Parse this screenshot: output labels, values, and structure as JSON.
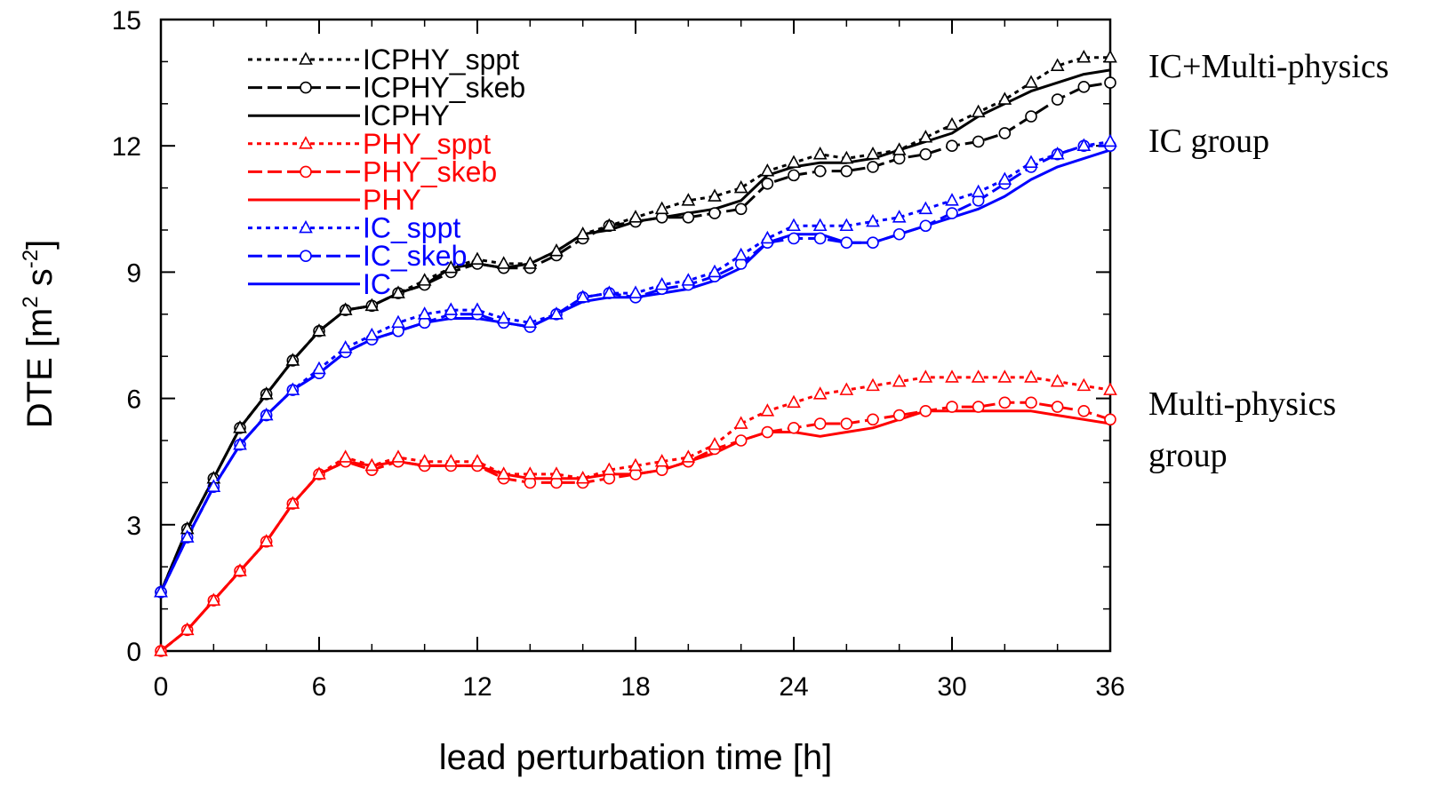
{
  "chart_data": {
    "type": "line",
    "title": "",
    "xlabel": "lead perturbation time [h]",
    "ylabel": {
      "base": "DTE [m",
      "sup1": "2",
      "mid": " s",
      "sup2": "-2",
      "end": "]"
    },
    "xlim": [
      0,
      36
    ],
    "ylim": [
      0,
      15
    ],
    "xticks": [
      0,
      6,
      12,
      18,
      24,
      30,
      36
    ],
    "yticks": [
      0,
      3,
      6,
      9,
      12,
      15
    ],
    "legend_position": "top-left",
    "grid": false,
    "x": [
      0,
      1,
      2,
      3,
      4,
      5,
      6,
      7,
      8,
      9,
      10,
      11,
      12,
      13,
      14,
      15,
      16,
      17,
      18,
      19,
      20,
      21,
      22,
      23,
      24,
      25,
      26,
      27,
      28,
      29,
      30,
      31,
      32,
      33,
      34,
      35,
      36
    ],
    "series": [
      {
        "name": "ICPHY_sppt",
        "color": "#000000",
        "dash": "dotted",
        "marker": "triangle",
        "values": [
          1.4,
          2.9,
          4.1,
          5.3,
          6.1,
          6.9,
          7.6,
          8.1,
          8.2,
          8.5,
          8.8,
          9.1,
          9.3,
          9.2,
          9.2,
          9.5,
          9.9,
          10.1,
          10.3,
          10.5,
          10.7,
          10.8,
          11.0,
          11.4,
          11.6,
          11.8,
          11.7,
          11.8,
          11.9,
          12.2,
          12.5,
          12.8,
          13.1,
          13.5,
          13.9,
          14.1,
          14.1
        ]
      },
      {
        "name": "ICPHY_skeb",
        "color": "#000000",
        "dash": "dashed",
        "marker": "circle",
        "values": [
          1.4,
          2.9,
          4.1,
          5.3,
          6.1,
          6.9,
          7.6,
          8.1,
          8.2,
          8.5,
          8.7,
          9.0,
          9.2,
          9.1,
          9.1,
          9.4,
          9.8,
          10.1,
          10.2,
          10.3,
          10.3,
          10.4,
          10.5,
          11.1,
          11.3,
          11.4,
          11.4,
          11.5,
          11.7,
          11.8,
          12.0,
          12.1,
          12.3,
          12.7,
          13.1,
          13.4,
          13.5
        ]
      },
      {
        "name": "ICPHY",
        "color": "#000000",
        "dash": "solid",
        "marker": "none",
        "values": [
          1.4,
          2.9,
          4.1,
          5.3,
          6.1,
          6.9,
          7.6,
          8.1,
          8.2,
          8.5,
          8.7,
          9.1,
          9.2,
          9.1,
          9.2,
          9.5,
          9.9,
          10.0,
          10.2,
          10.3,
          10.4,
          10.5,
          10.7,
          11.3,
          11.5,
          11.6,
          11.6,
          11.7,
          11.9,
          12.1,
          12.3,
          12.7,
          13.0,
          13.3,
          13.5,
          13.7,
          13.8
        ]
      },
      {
        "name": "PHY_sppt",
        "color": "#ff0000",
        "dash": "dotted",
        "marker": "triangle",
        "values": [
          0.0,
          0.5,
          1.2,
          1.9,
          2.6,
          3.5,
          4.2,
          4.6,
          4.4,
          4.6,
          4.5,
          4.5,
          4.5,
          4.2,
          4.2,
          4.2,
          4.1,
          4.3,
          4.4,
          4.5,
          4.6,
          4.9,
          5.4,
          5.7,
          5.9,
          6.1,
          6.2,
          6.3,
          6.4,
          6.5,
          6.5,
          6.5,
          6.5,
          6.5,
          6.4,
          6.3,
          6.2
        ]
      },
      {
        "name": "PHY_skeb",
        "color": "#ff0000",
        "dash": "dashed",
        "marker": "circle",
        "values": [
          0.0,
          0.5,
          1.2,
          1.9,
          2.6,
          3.5,
          4.2,
          4.5,
          4.3,
          4.5,
          4.4,
          4.4,
          4.4,
          4.1,
          4.0,
          4.0,
          4.0,
          4.1,
          4.2,
          4.3,
          4.5,
          4.8,
          5.0,
          5.2,
          5.3,
          5.4,
          5.4,
          5.5,
          5.6,
          5.7,
          5.8,
          5.8,
          5.9,
          5.9,
          5.8,
          5.7,
          5.5
        ]
      },
      {
        "name": "PHY",
        "color": "#ff0000",
        "dash": "solid",
        "marker": "none",
        "values": [
          0.0,
          0.5,
          1.2,
          1.9,
          2.6,
          3.5,
          4.2,
          4.5,
          4.4,
          4.5,
          4.4,
          4.4,
          4.4,
          4.2,
          4.1,
          4.1,
          4.1,
          4.2,
          4.2,
          4.3,
          4.5,
          4.7,
          5.0,
          5.2,
          5.2,
          5.1,
          5.2,
          5.3,
          5.5,
          5.7,
          5.7,
          5.7,
          5.7,
          5.7,
          5.6,
          5.5,
          5.4
        ]
      },
      {
        "name": "IC_sppt",
        "color": "#0000ff",
        "dash": "dotted",
        "marker": "triangle",
        "values": [
          1.4,
          2.7,
          3.9,
          4.9,
          5.6,
          6.2,
          6.7,
          7.2,
          7.5,
          7.8,
          8.0,
          8.1,
          8.1,
          7.9,
          7.8,
          8.0,
          8.4,
          8.5,
          8.5,
          8.7,
          8.8,
          9.0,
          9.4,
          9.8,
          10.1,
          10.1,
          10.1,
          10.2,
          10.3,
          10.5,
          10.7,
          10.9,
          11.2,
          11.6,
          11.8,
          12.0,
          12.1
        ]
      },
      {
        "name": "IC_skeb",
        "color": "#0000ff",
        "dash": "dashed",
        "marker": "circle",
        "values": [
          1.4,
          2.7,
          3.9,
          4.9,
          5.6,
          6.2,
          6.6,
          7.1,
          7.4,
          7.6,
          7.8,
          8.0,
          8.0,
          7.8,
          7.7,
          8.0,
          8.4,
          8.5,
          8.4,
          8.6,
          8.7,
          8.9,
          9.2,
          9.7,
          9.8,
          9.8,
          9.7,
          9.7,
          9.9,
          10.1,
          10.4,
          10.7,
          11.1,
          11.5,
          11.8,
          12.0,
          12.0
        ]
      },
      {
        "name": "IC",
        "color": "#0000ff",
        "dash": "solid",
        "marker": "none",
        "values": [
          1.4,
          2.7,
          3.9,
          4.9,
          5.6,
          6.2,
          6.6,
          7.1,
          7.4,
          7.6,
          7.8,
          7.9,
          7.9,
          7.8,
          7.7,
          8.0,
          8.3,
          8.4,
          8.4,
          8.5,
          8.6,
          8.8,
          9.1,
          9.7,
          9.9,
          9.9,
          9.7,
          9.7,
          9.9,
          10.1,
          10.3,
          10.5,
          10.8,
          11.2,
          11.5,
          11.7,
          11.9
        ]
      }
    ],
    "annotations": [
      {
        "id": "ic-multiphysics",
        "lines": [
          "IC+Multi-physics"
        ],
        "color": "#000000"
      },
      {
        "id": "ic-group",
        "lines": [
          "IC group"
        ],
        "color": "#000000"
      },
      {
        "id": "multiphysics-group",
        "lines": [
          "Multi-physics",
          "group"
        ],
        "color": "#000000"
      }
    ]
  }
}
